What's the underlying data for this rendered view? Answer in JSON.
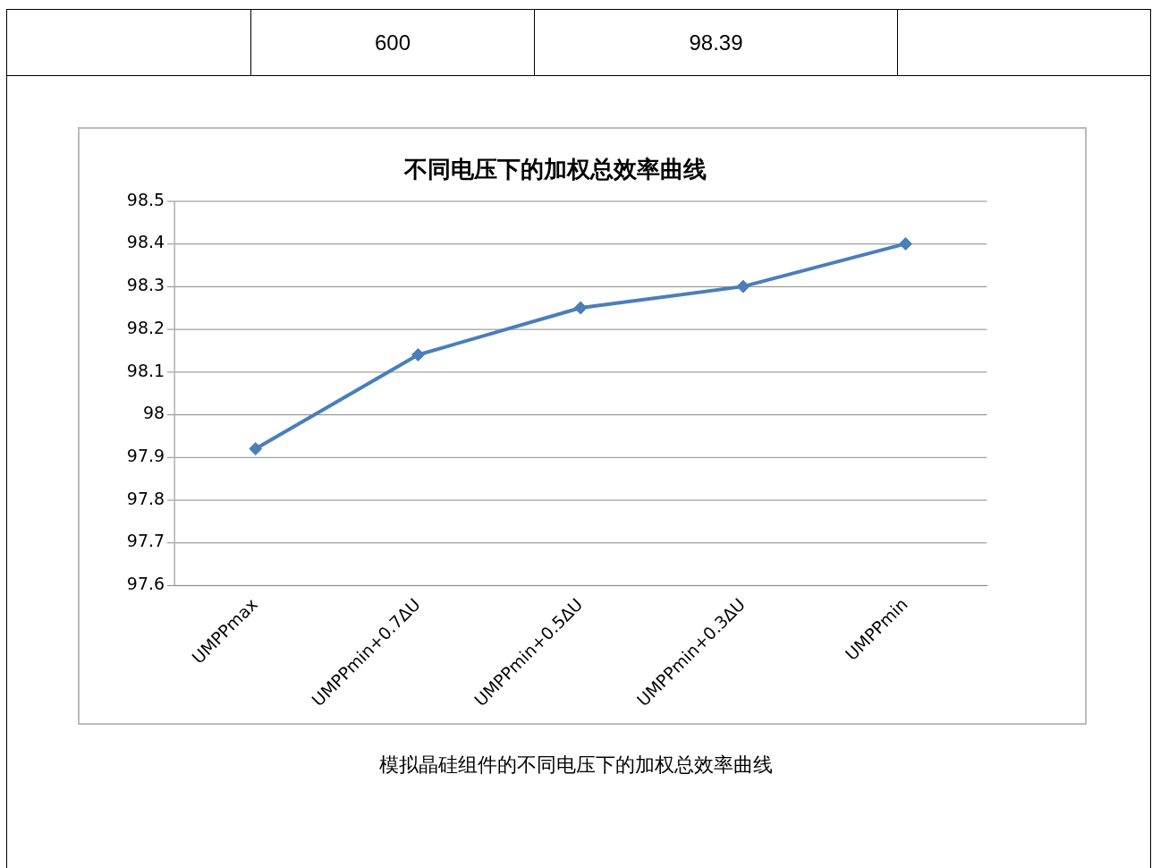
{
  "chart_data": {
    "type": "line",
    "title": "不同电压下的加权总效率曲线",
    "categories": [
      "UMPPmax",
      "UMPPmin+0.7ΔU",
      "UMPPmin+0.5ΔU",
      "UMPPmin+0.3ΔU",
      "UMPPmin"
    ],
    "series": [
      {
        "color": "#4a7ebb",
        "values": [
          97.92,
          98.14,
          98.25,
          98.3,
          98.4
        ]
      }
    ],
    "ylim": [
      97.6,
      98.5
    ],
    "yticks": [
      97.6,
      97.7,
      97.8,
      97.9,
      98,
      98.1,
      98.2,
      98.3,
      98.4,
      98.5
    ],
    "grid": "y",
    "legend": false,
    "marker": "diamond",
    "line_style": "solid",
    "annotations": [
      "600",
      "98.39",
      "模拟晶硅组件的不同电压下的加权总效率曲线"
    ]
  }
}
